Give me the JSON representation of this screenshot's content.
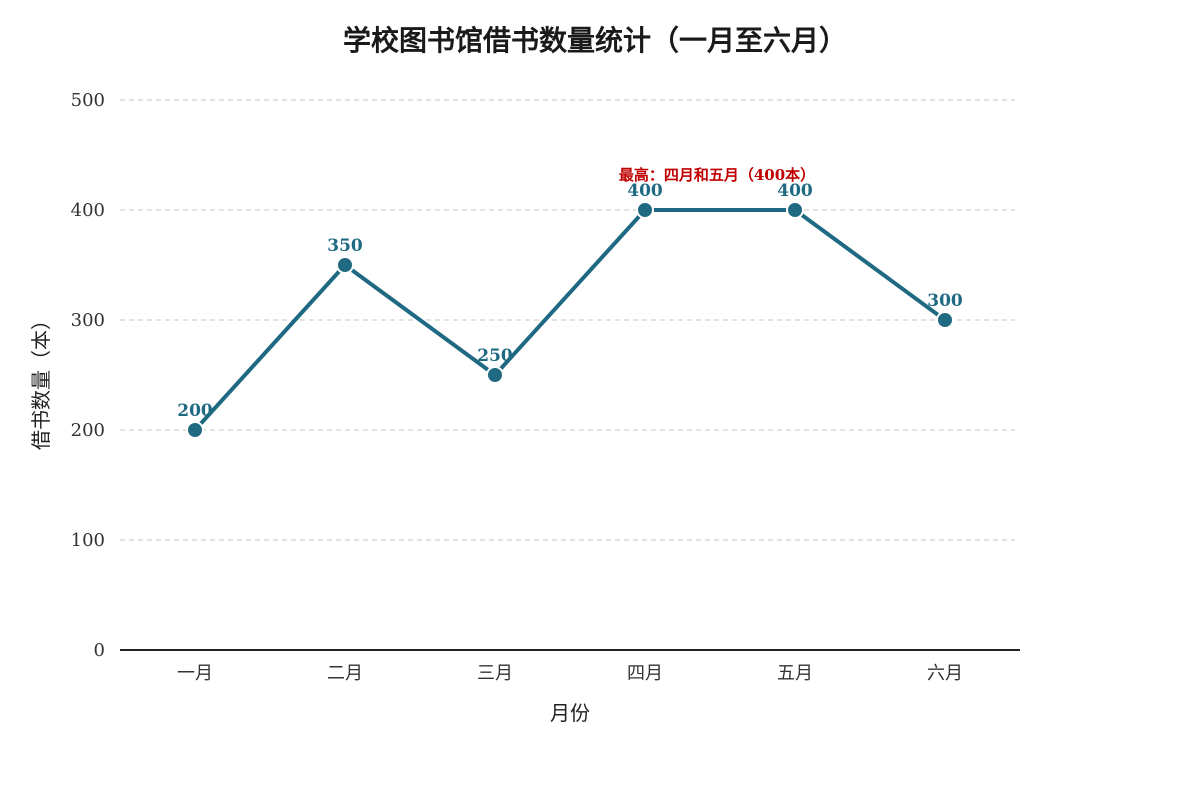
{
  "chart_data": {
    "type": "line",
    "title": "学校图书馆借书数量统计（一月至六月）",
    "xlabel": "月份",
    "ylabel": "借书数量（本）",
    "categories": [
      "一月",
      "二月",
      "三月",
      "四月",
      "五月",
      "六月"
    ],
    "values": [
      200,
      350,
      250,
      400,
      400,
      300
    ],
    "data_labels": [
      "200",
      "350",
      "250",
      "400",
      "400",
      "300"
    ],
    "ylim": [
      0,
      500
    ],
    "yticks": [
      0,
      100,
      200,
      300,
      400,
      500
    ],
    "ytick_labels": [
      "0",
      "100",
      "200",
      "300",
      "400",
      "500"
    ],
    "grid": "horizontal-dashed",
    "annotations": [
      {
        "text": "最高：四月和五月（400本）",
        "x": "四月",
        "y": 400
      }
    ]
  },
  "colors": {
    "line": "#1f6a82",
    "marker": "#1f6a82",
    "data_label": "#1f6a82",
    "annotation": "#c00000",
    "grid": "#d0d0d0",
    "axis": "#222222"
  }
}
